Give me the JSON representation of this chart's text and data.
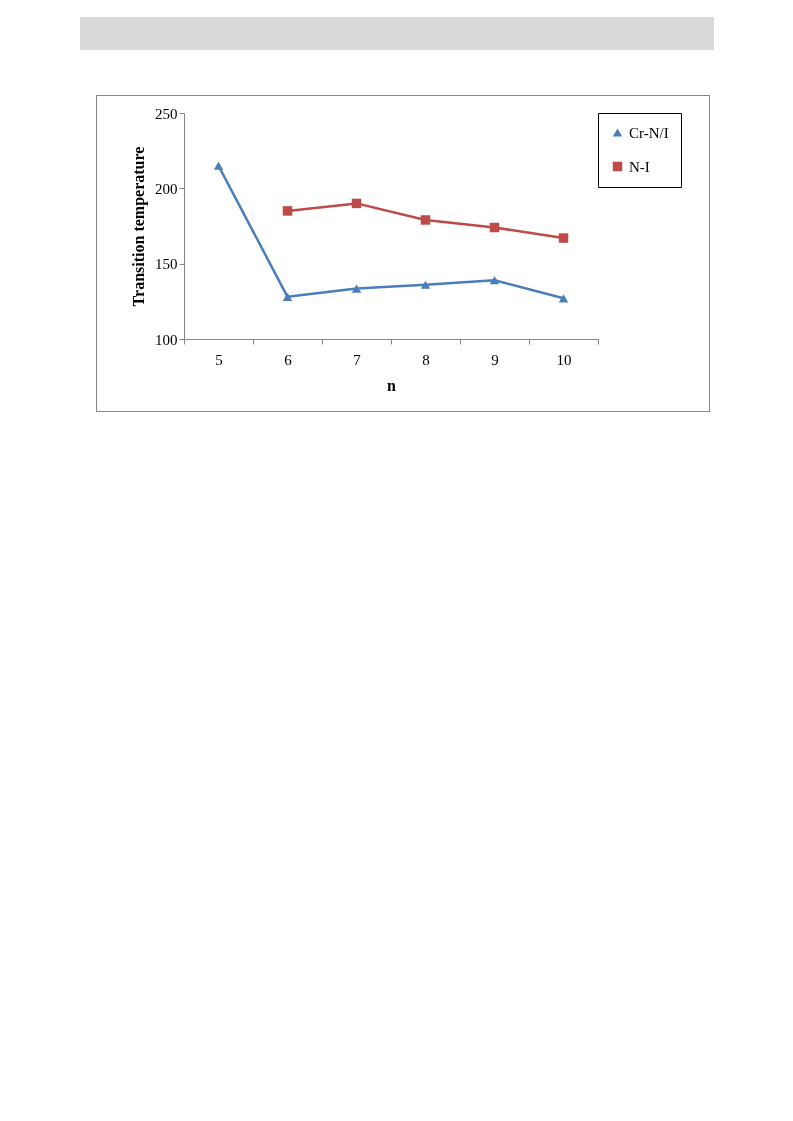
{
  "chart_data": {
    "type": "line",
    "xlabel": "n",
    "ylabel": "Transition temperature",
    "categories": [
      "5",
      "6",
      "7",
      "8",
      "9",
      "10"
    ],
    "series": [
      {
        "name": "Cr-N/I",
        "color": "#4a7ebb",
        "marker": "triangle",
        "values": [
          215,
          128,
          133.5,
          136,
          139,
          127
        ]
      },
      {
        "name": "N-I",
        "color": "#be4b48",
        "marker": "square",
        "values": [
          null,
          185,
          190,
          179,
          174,
          167
        ]
      }
    ],
    "ylim": [
      100,
      250
    ],
    "yticks": [
      100,
      150,
      200,
      250
    ],
    "grid": false,
    "legend": "right",
    "line_style": "solid"
  }
}
